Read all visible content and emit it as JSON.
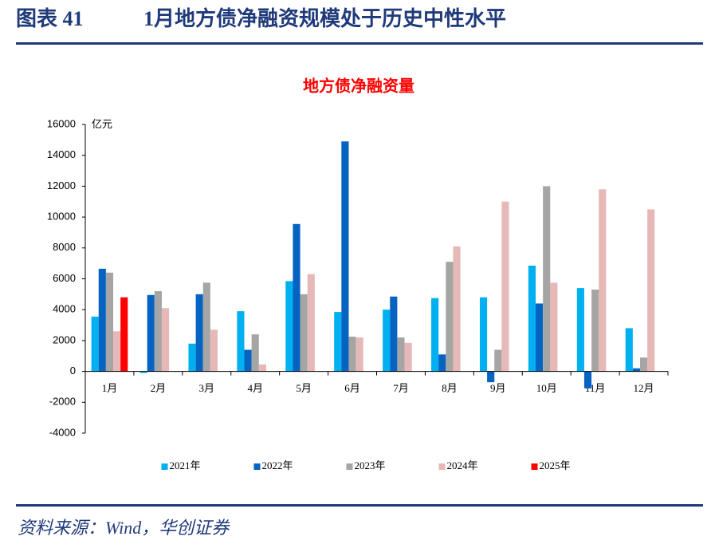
{
  "header": {
    "label": "图表 41",
    "title": "1月地方债净融资规模处于历史中性水平"
  },
  "chart_data": {
    "type": "bar",
    "title": "地方债净融资量",
    "ylabel": "亿元",
    "categories": [
      "1月",
      "2月",
      "3月",
      "4月",
      "5月",
      "6月",
      "7月",
      "8月",
      "9月",
      "10月",
      "11月",
      "12月"
    ],
    "series": [
      {
        "name": "2021年",
        "color": "#00b0f0",
        "values": [
          3550,
          -100,
          1800,
          3900,
          5850,
          3850,
          4000,
          4750,
          4800,
          6850,
          5400,
          2800
        ]
      },
      {
        "name": "2022年",
        "color": "#0563c1",
        "values": [
          6650,
          4950,
          5000,
          1400,
          9550,
          14900,
          4850,
          1100,
          -700,
          4400,
          -1100,
          200
        ]
      },
      {
        "name": "2023年",
        "color": "#a5a5a5",
        "values": [
          6400,
          5200,
          5750,
          2400,
          5000,
          2250,
          2200,
          7100,
          1400,
          12000,
          5300,
          900
        ]
      },
      {
        "name": "2024年",
        "color": "#e6b8b7",
        "values": [
          2600,
          4100,
          2700,
          450,
          6300,
          2200,
          1850,
          8100,
          11000,
          5750,
          11800,
          10500
        ]
      },
      {
        "name": "2025年",
        "color": "#ff0000",
        "values": [
          4800,
          null,
          null,
          null,
          null,
          null,
          null,
          null,
          null,
          null,
          null,
          null
        ]
      }
    ],
    "ylim": [
      -4000,
      16000
    ],
    "yticks": [
      -4000,
      -2000,
      0,
      2000,
      4000,
      6000,
      8000,
      10000,
      12000,
      14000,
      16000
    ],
    "legend": "bottom"
  },
  "source": "资料来源：Wind，华创证券"
}
